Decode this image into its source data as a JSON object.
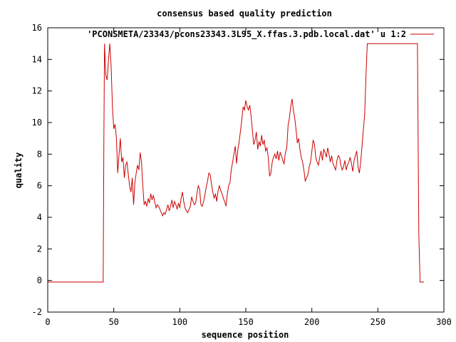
{
  "chart_data": {
    "type": "line",
    "title": "consensus based quality prediction",
    "xlabel": "sequence position",
    "ylabel": "quality",
    "xlim": [
      0,
      300
    ],
    "ylim": [
      -2,
      16
    ],
    "xticks": [
      0,
      50,
      100,
      150,
      200,
      250,
      300
    ],
    "yticks": [
      -2,
      0,
      2,
      4,
      6,
      8,
      10,
      12,
      14,
      16
    ],
    "grid": false,
    "legend": "top-right",
    "series": [
      {
        "name": "'PCONSMETA/23343/pcons23343.3L95_X.ffas.3.pdb.local.dat' u 1:2",
        "color": "#cc0000",
        "points": [
          [
            0,
            -0.1
          ],
          [
            42,
            -0.1
          ],
          [
            42.5,
            9.0
          ],
          [
            43,
            15.0
          ],
          [
            44,
            13.0
          ],
          [
            45,
            12.7
          ],
          [
            46,
            14.0
          ],
          [
            47,
            15.0
          ],
          [
            48,
            13.5
          ],
          [
            49,
            11.0
          ],
          [
            50,
            9.6
          ],
          [
            51,
            9.9
          ],
          [
            52,
            9.0
          ],
          [
            53,
            6.8
          ],
          [
            54,
            8.0
          ],
          [
            55,
            9.0
          ],
          [
            56,
            7.5
          ],
          [
            57,
            7.8
          ],
          [
            58,
            6.5
          ],
          [
            59,
            7.3
          ],
          [
            60,
            7.5
          ],
          [
            61,
            6.7
          ],
          [
            62,
            6.0
          ],
          [
            63,
            5.6
          ],
          [
            64,
            6.5
          ],
          [
            65,
            4.8
          ],
          [
            66,
            6.2
          ],
          [
            67,
            6.8
          ],
          [
            68,
            7.3
          ],
          [
            69,
            7.0
          ],
          [
            70,
            8.1
          ],
          [
            71,
            7.5
          ],
          [
            72,
            6.0
          ],
          [
            73,
            4.8
          ],
          [
            74,
            5.0
          ],
          [
            75,
            4.7
          ],
          [
            76,
            5.2
          ],
          [
            77,
            4.9
          ],
          [
            78,
            5.5
          ],
          [
            79,
            5.1
          ],
          [
            80,
            5.4
          ],
          [
            81,
            5.0
          ],
          [
            82,
            4.6
          ],
          [
            83,
            4.8
          ],
          [
            84,
            4.7
          ],
          [
            85,
            4.5
          ],
          [
            86,
            4.3
          ],
          [
            87,
            4.1
          ],
          [
            88,
            4.3
          ],
          [
            89,
            4.2
          ],
          [
            90,
            4.5
          ],
          [
            91,
            4.8
          ],
          [
            92,
            4.4
          ],
          [
            93,
            4.7
          ],
          [
            94,
            5.1
          ],
          [
            95,
            4.6
          ],
          [
            96,
            5.0
          ],
          [
            97,
            4.8
          ],
          [
            98,
            4.5
          ],
          [
            99,
            4.9
          ],
          [
            100,
            4.6
          ],
          [
            101,
            5.2
          ],
          [
            102,
            5.6
          ],
          [
            103,
            5.0
          ],
          [
            104,
            4.6
          ],
          [
            105,
            4.4
          ],
          [
            106,
            4.3
          ],
          [
            107,
            4.5
          ],
          [
            108,
            4.7
          ],
          [
            109,
            5.3
          ],
          [
            110,
            5.0
          ],
          [
            111,
            4.8
          ],
          [
            112,
            4.9
          ],
          [
            113,
            5.5
          ],
          [
            114,
            6.0
          ],
          [
            115,
            5.8
          ],
          [
            116,
            4.8
          ],
          [
            117,
            4.7
          ],
          [
            118,
            5.0
          ],
          [
            119,
            5.4
          ],
          [
            120,
            5.9
          ],
          [
            121,
            6.3
          ],
          [
            122,
            6.8
          ],
          [
            123,
            6.7
          ],
          [
            124,
            6.1
          ],
          [
            125,
            5.6
          ],
          [
            126,
            5.2
          ],
          [
            127,
            5.5
          ],
          [
            128,
            5.0
          ],
          [
            129,
            5.7
          ],
          [
            130,
            6.0
          ],
          [
            131,
            5.7
          ],
          [
            132,
            5.5
          ],
          [
            133,
            5.2
          ],
          [
            134,
            5.0
          ],
          [
            135,
            4.7
          ],
          [
            136,
            5.5
          ],
          [
            137,
            6.0
          ],
          [
            138,
            6.2
          ],
          [
            139,
            7.0
          ],
          [
            140,
            7.5
          ],
          [
            141,
            8.0
          ],
          [
            142,
            8.5
          ],
          [
            143,
            7.4
          ],
          [
            144,
            8.3
          ],
          [
            145,
            8.8
          ],
          [
            146,
            9.5
          ],
          [
            147,
            10.2
          ],
          [
            148,
            11.0
          ],
          [
            149,
            10.8
          ],
          [
            150,
            11.4
          ],
          [
            151,
            11.0
          ],
          [
            152,
            10.8
          ],
          [
            153,
            11.1
          ],
          [
            154,
            10.4
          ],
          [
            155,
            9.5
          ],
          [
            156,
            8.6
          ],
          [
            157,
            8.9
          ],
          [
            158,
            9.4
          ],
          [
            159,
            8.3
          ],
          [
            160,
            8.8
          ],
          [
            161,
            8.5
          ],
          [
            162,
            9.2
          ],
          [
            163,
            8.6
          ],
          [
            164,
            8.9
          ],
          [
            165,
            8.2
          ],
          [
            166,
            8.4
          ],
          [
            167,
            7.8
          ],
          [
            168,
            6.6
          ],
          [
            169,
            6.8
          ],
          [
            170,
            7.5
          ],
          [
            171,
            7.8
          ],
          [
            172,
            8.0
          ],
          [
            173,
            7.7
          ],
          [
            174,
            8.2
          ],
          [
            175,
            7.6
          ],
          [
            176,
            8.1
          ],
          [
            177,
            7.9
          ],
          [
            178,
            7.6
          ],
          [
            179,
            7.4
          ],
          [
            180,
            8.1
          ],
          [
            181,
            8.4
          ],
          [
            182,
            9.8
          ],
          [
            183,
            10.3
          ],
          [
            184,
            11.0
          ],
          [
            185,
            11.5
          ],
          [
            186,
            10.8
          ],
          [
            187,
            10.3
          ],
          [
            188,
            9.6
          ],
          [
            189,
            8.7
          ],
          [
            190,
            9.0
          ],
          [
            191,
            8.3
          ],
          [
            192,
            7.8
          ],
          [
            193,
            7.5
          ],
          [
            194,
            7.0
          ],
          [
            195,
            6.3
          ],
          [
            196,
            6.5
          ],
          [
            197,
            6.7
          ],
          [
            198,
            7.2
          ],
          [
            199,
            7.5
          ],
          [
            200,
            8.2
          ],
          [
            201,
            8.9
          ],
          [
            202,
            8.6
          ],
          [
            203,
            7.8
          ],
          [
            204,
            7.5
          ],
          [
            205,
            7.3
          ],
          [
            206,
            7.8
          ],
          [
            207,
            8.2
          ],
          [
            208,
            7.6
          ],
          [
            209,
            8.3
          ],
          [
            210,
            8.1
          ],
          [
            211,
            7.8
          ],
          [
            212,
            8.4
          ],
          [
            213,
            8.0
          ],
          [
            214,
            7.5
          ],
          [
            215,
            7.9
          ],
          [
            216,
            7.4
          ],
          [
            217,
            7.2
          ],
          [
            218,
            7.0
          ],
          [
            219,
            7.6
          ],
          [
            220,
            7.9
          ],
          [
            221,
            7.8
          ],
          [
            222,
            7.3
          ],
          [
            223,
            7.0
          ],
          [
            224,
            7.2
          ],
          [
            225,
            7.6
          ],
          [
            226,
            7.0
          ],
          [
            227,
            7.3
          ],
          [
            228,
            7.5
          ],
          [
            229,
            7.8
          ],
          [
            230,
            7.4
          ],
          [
            231,
            6.9
          ],
          [
            232,
            7.6
          ],
          [
            233,
            7.9
          ],
          [
            234,
            8.2
          ],
          [
            235,
            7.2
          ],
          [
            236,
            6.8
          ],
          [
            237,
            7.5
          ],
          [
            238,
            8.5
          ],
          [
            239,
            9.5
          ],
          [
            240,
            10.5
          ],
          [
            241,
            13.0
          ],
          [
            242,
            15.0
          ],
          [
            280,
            15.0
          ],
          [
            281,
            3.0
          ],
          [
            282,
            -0.1
          ],
          [
            285,
            -0.1
          ]
        ]
      }
    ]
  }
}
